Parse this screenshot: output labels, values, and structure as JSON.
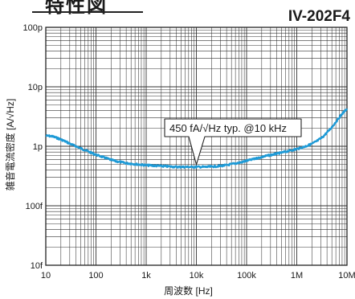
{
  "header": {
    "title": "特性図",
    "model": "IV-202F4"
  },
  "chart_data": {
    "type": "line",
    "xscale": "log",
    "yscale": "log",
    "xlim": [
      10,
      10000000
    ],
    "ylim": [
      1e-14,
      1e-10
    ],
    "xticks": [
      10,
      100,
      1000,
      10000,
      100000,
      1000000,
      10000000
    ],
    "xtick_labels": [
      "10",
      "100",
      "1k",
      "10k",
      "100k",
      "1M",
      "10M"
    ],
    "yticks": [
      1e-10,
      1e-11,
      1e-12,
      1e-13,
      1e-14
    ],
    "ytick_labels": [
      "100p",
      "10p",
      "1p",
      "100f",
      "10f"
    ],
    "xlabel": "周波数 [Hz]",
    "ylabel": "雑音電流密度 [A/√Hz]",
    "grid": true,
    "line_color": "#1e9ad6",
    "series": [
      {
        "x": [
          10,
          13,
          16,
          20,
          25,
          32,
          40,
          50,
          63,
          80,
          100,
          130,
          160,
          200,
          250,
          320,
          400,
          500,
          630,
          800,
          1000,
          1300,
          1600,
          2000,
          2500,
          3200,
          4000,
          5000,
          6300,
          8000,
          10000,
          13000,
          16000,
          20000,
          25000,
          32000,
          40000,
          50000,
          63000,
          80000,
          100000,
          130000,
          160000,
          200000,
          250000,
          320000,
          400000,
          500000,
          630000,
          800000,
          1000000,
          1300000,
          1600000,
          2000000,
          2500000,
          3200000,
          4000000,
          5000000,
          6300000,
          8000000,
          10000000
        ],
        "values": [
          1.5e-12,
          1.48e-12,
          1.4e-12,
          1.3e-12,
          1.2e-12,
          1.08e-12,
          1e-12,
          9.2e-13,
          8.5e-13,
          7.8e-13,
          7.2e-13,
          6.7e-13,
          6.3e-13,
          5.9e-13,
          5.6e-13,
          5.4e-13,
          5.2e-13,
          5.1e-13,
          5e-13,
          4.9e-13,
          4.8e-13,
          4.75e-13,
          4.7e-13,
          4.65e-13,
          4.6e-13,
          4.55e-13,
          4.5e-13,
          4.5e-13,
          4.5e-13,
          4.5e-13,
          4.5e-13,
          4.5e-13,
          4.5e-13,
          4.55e-13,
          4.6e-13,
          4.7e-13,
          4.8e-13,
          5e-13,
          5.2e-13,
          5.4e-13,
          5.7e-13,
          6e-13,
          6.3e-13,
          6.6e-13,
          6.9e-13,
          7.2e-13,
          7.5e-13,
          7.8e-13,
          8.2e-13,
          8.6e-13,
          9e-13,
          9.6e-13,
          1.02e-12,
          1.1e-12,
          1.22e-12,
          1.4e-12,
          1.7e-12,
          2.1e-12,
          2.7e-12,
          3.5e-12,
          4.3e-12
        ]
      }
    ],
    "annotation": {
      "text": "450 fA/√Hz typ. @10 kHz",
      "x": 10000,
      "y": 4.5e-13
    }
  }
}
